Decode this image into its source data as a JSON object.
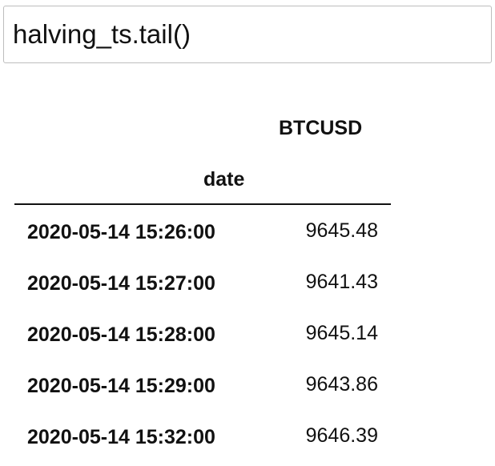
{
  "cell": {
    "code": "halving_ts.tail()"
  },
  "dataframe": {
    "column_header": "BTCUSD",
    "index_name": "date",
    "rows": [
      {
        "date": "2020-05-14 15:26:00",
        "BTCUSD": "9645.48"
      },
      {
        "date": "2020-05-14 15:27:00",
        "BTCUSD": "9641.43"
      },
      {
        "date": "2020-05-14 15:28:00",
        "BTCUSD": "9645.14"
      },
      {
        "date": "2020-05-14 15:29:00",
        "BTCUSD": "9643.86"
      },
      {
        "date": "2020-05-14 15:32:00",
        "BTCUSD": "9646.39"
      }
    ]
  }
}
